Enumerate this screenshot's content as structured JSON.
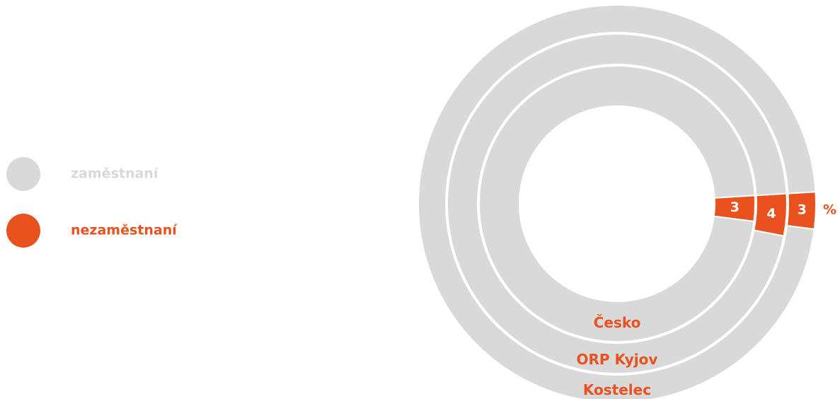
{
  "chart_data": {
    "type": "nested-donut",
    "categories": [
      "Česko",
      "ORP Kyjov",
      "Kostelec"
    ],
    "series": [
      {
        "name": "zaměstnaní",
        "color": "#d9d9d9",
        "values": [
          97,
          96,
          97
        ]
      },
      {
        "name": "nezaměstnaní",
        "color": "#e9521e",
        "values": [
          3,
          4,
          3
        ]
      }
    ],
    "unit": "%"
  }
}
